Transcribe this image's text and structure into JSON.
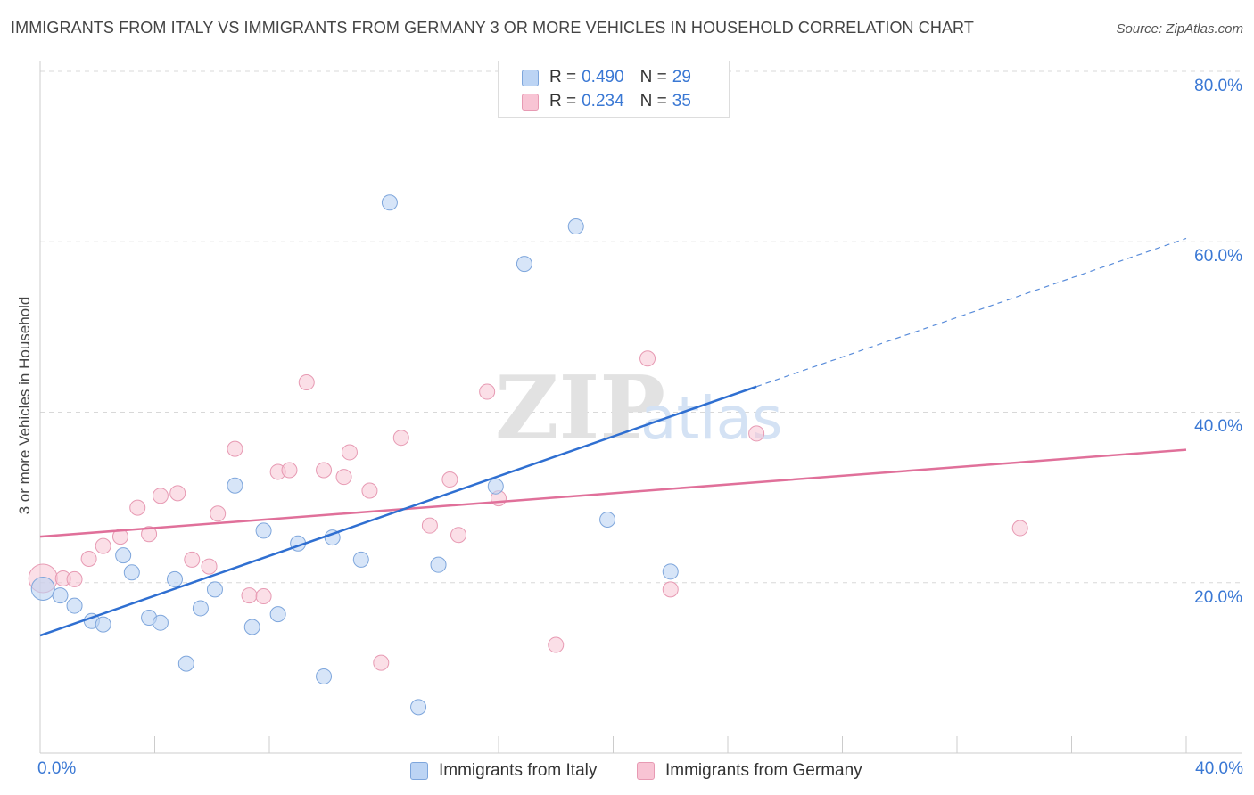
{
  "title": "IMMIGRANTS FROM ITALY VS IMMIGRANTS FROM GERMANY 3 OR MORE VEHICLES IN HOUSEHOLD CORRELATION CHART",
  "source": "Source: ZipAtlas.com",
  "watermark": {
    "zip": "ZIP",
    "atlas": "atlas"
  },
  "legend": {
    "italy": {
      "r_label": "R =",
      "r_value": "0.490",
      "n_label": "N =",
      "n_value": "29"
    },
    "germany": {
      "r_label": "R =",
      "r_value": "0.234",
      "n_label": "N =",
      "n_value": "35"
    }
  },
  "bottom_legend": {
    "italy": "Immigrants from Italy",
    "germany": "Immigrants from Germany"
  },
  "colors": {
    "italy_fill": "#bcd4f4",
    "italy_stroke": "#7ea6dc",
    "italy_line": "#2f6fd1",
    "germany_fill": "#f8c4d4",
    "germany_stroke": "#e79ab3",
    "germany_line": "#e0709a",
    "tick_text": "#3a78d4",
    "grid": "#d8d8d8"
  },
  "chart_data": {
    "type": "scatter",
    "title": "IMMIGRANTS FROM ITALY VS IMMIGRANTS FROM GERMANY 3 OR MORE VEHICLES IN HOUSEHOLD CORRELATION CHART",
    "xlabel": "",
    "ylabel": "3 or more Vehicles in Household",
    "xlim": [
      0,
      40
    ],
    "ylim": [
      0,
      80
    ],
    "x_tick_labels": [
      "0.0%",
      "40.0%"
    ],
    "y_tick_labels": [
      "20.0%",
      "40.0%",
      "60.0%",
      "80.0%"
    ],
    "y_ticks": [
      20,
      40,
      60,
      80
    ],
    "grid": true,
    "legend_position": "top-center",
    "series": [
      {
        "name": "Immigrants from Italy",
        "R": 0.49,
        "N": 29,
        "trend": {
          "x0": 0,
          "y0": 13.8,
          "x1": 25,
          "y1": 43.0,
          "dashed_to_x": 40,
          "dashed_to_y": 60.4
        },
        "points": [
          [
            0.1,
            19.3
          ],
          [
            0.7,
            18.5
          ],
          [
            1.2,
            17.3
          ],
          [
            1.8,
            15.5
          ],
          [
            2.2,
            15.1
          ],
          [
            2.9,
            23.2
          ],
          [
            3.2,
            21.2
          ],
          [
            3.8,
            15.9
          ],
          [
            4.2,
            15.3
          ],
          [
            4.7,
            20.4
          ],
          [
            5.1,
            10.5
          ],
          [
            5.6,
            17.0
          ],
          [
            6.1,
            19.2
          ],
          [
            6.8,
            31.4
          ],
          [
            7.4,
            14.8
          ],
          [
            7.8,
            26.1
          ],
          [
            8.3,
            16.3
          ],
          [
            9.0,
            24.6
          ],
          [
            9.9,
            9.0
          ],
          [
            10.2,
            25.3
          ],
          [
            11.2,
            22.7
          ],
          [
            12.2,
            64.6
          ],
          [
            13.2,
            5.4
          ],
          [
            13.9,
            22.1
          ],
          [
            15.9,
            31.3
          ],
          [
            16.9,
            57.4
          ],
          [
            18.7,
            61.8
          ],
          [
            19.8,
            27.4
          ],
          [
            22.0,
            21.3
          ]
        ]
      },
      {
        "name": "Immigrants from Germany",
        "R": 0.234,
        "N": 35,
        "trend": {
          "x0": 0,
          "y0": 25.4,
          "x1": 40,
          "y1": 35.6
        },
        "points": [
          [
            0.1,
            20.5
          ],
          [
            0.8,
            20.5
          ],
          [
            1.2,
            20.4
          ],
          [
            1.7,
            22.8
          ],
          [
            2.2,
            24.3
          ],
          [
            2.8,
            25.4
          ],
          [
            3.4,
            28.8
          ],
          [
            3.8,
            25.7
          ],
          [
            4.2,
            30.2
          ],
          [
            4.8,
            30.5
          ],
          [
            5.3,
            22.7
          ],
          [
            5.9,
            21.9
          ],
          [
            6.2,
            28.1
          ],
          [
            6.8,
            35.7
          ],
          [
            7.3,
            18.5
          ],
          [
            7.8,
            18.4
          ],
          [
            8.3,
            33.0
          ],
          [
            8.7,
            33.2
          ],
          [
            9.3,
            43.5
          ],
          [
            9.9,
            33.2
          ],
          [
            10.6,
            32.4
          ],
          [
            10.8,
            35.3
          ],
          [
            11.5,
            30.8
          ],
          [
            11.9,
            10.6
          ],
          [
            12.6,
            37.0
          ],
          [
            13.6,
            26.7
          ],
          [
            14.3,
            32.1
          ],
          [
            14.6,
            25.6
          ],
          [
            15.6,
            42.4
          ],
          [
            16.0,
            29.9
          ],
          [
            18.0,
            12.7
          ],
          [
            21.2,
            46.3
          ],
          [
            22.0,
            19.2
          ],
          [
            25.0,
            37.5
          ],
          [
            34.2,
            26.4
          ]
        ]
      }
    ]
  }
}
